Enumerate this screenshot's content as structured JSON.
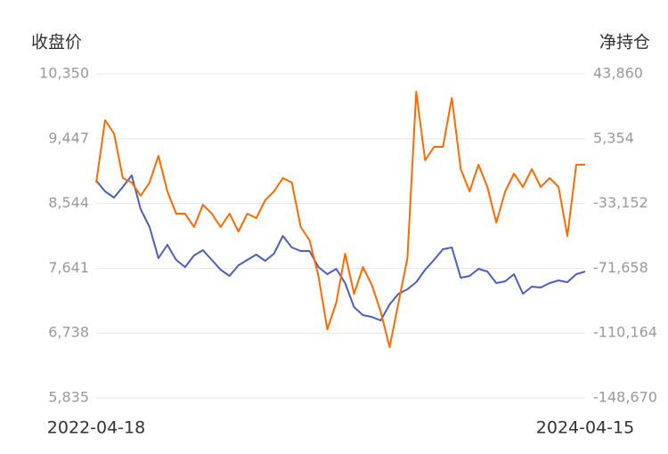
{
  "chart_data": {
    "type": "line",
    "y_label": "收盘价",
    "y2_label": "净持仓",
    "categories": [
      "2022-04-18",
      null,
      null,
      null,
      null,
      null,
      null,
      null,
      null,
      null,
      null,
      null,
      null,
      null,
      null,
      null,
      null,
      null,
      null,
      null,
      null,
      null,
      null,
      null,
      null,
      null,
      null,
      null,
      null,
      null,
      null,
      null,
      null,
      null,
      null,
      null,
      null,
      null,
      null,
      null,
      null,
      null,
      null,
      null,
      null,
      null,
      null,
      null,
      null,
      null,
      null,
      null,
      null,
      null,
      null,
      "2024-04-15"
    ],
    "series": [
      {
        "color": "#4a5fc1",
        "axis": "y",
        "values": [
          8862,
          8713,
          8626,
          8775,
          8936,
          8465,
          8217,
          7782,
          7968,
          7758,
          7658,
          7820,
          7894,
          7758,
          7621,
          7534,
          7683,
          7758,
          7832,
          7745,
          7844,
          8092,
          7931,
          7882,
          7882,
          7658,
          7559,
          7634,
          7435,
          7100,
          6989,
          6964,
          6914,
          7137,
          7286,
          7348,
          7447,
          7621,
          7758,
          7906,
          7931,
          7509,
          7534,
          7634,
          7596,
          7435,
          7460,
          7559,
          7286,
          7385,
          7373,
          7435,
          7472,
          7447,
          7559,
          7596
        ]
      },
      {
        "color": "#ff6a00",
        "axis": "y2",
        "values": [
          -20666,
          16357,
          8424,
          -18021,
          -20666,
          -28599,
          -20666,
          -4799,
          -25955,
          -39177,
          -39177,
          -47111,
          -33888,
          -39177,
          -47111,
          -39177,
          -49755,
          -39177,
          -41822,
          -31244,
          -25955,
          -18021,
          -20666,
          -47111,
          -55044,
          -76200,
          -107934,
          -92067,
          -62978,
          -86778,
          -70911,
          -81489,
          -97356,
          -118512,
          -92067,
          -65622,
          33282,
          -7443,
          490,
          490,
          29580,
          -12732,
          -25955,
          -10088,
          -23310,
          -44466,
          -25955,
          -15377,
          -23310,
          -12732,
          -23310,
          -18021,
          -23310,
          -52400,
          -10088,
          -10088
        ]
      }
    ],
    "ylim": [
      5835,
      10350
    ],
    "yticks": [
      {
        "value": 10350,
        "label": "10,350"
      },
      {
        "value": 9447,
        "label": "9,447"
      },
      {
        "value": 8544,
        "label": "8,544"
      },
      {
        "value": 7641,
        "label": "7,641"
      },
      {
        "value": 6738,
        "label": "6,738"
      },
      {
        "value": 5835,
        "label": "5,835"
      }
    ],
    "y2lim": [
      -148670,
      43860
    ],
    "y2ticks": [
      {
        "value": 43860,
        "label": "43,860"
      },
      {
        "value": 5354,
        "label": "5,354"
      },
      {
        "value": -33152,
        "label": "-33,152"
      },
      {
        "value": -71658,
        "label": "-71,658"
      },
      {
        "value": -110164,
        "label": "-110,164"
      },
      {
        "value": -148670,
        "label": "-148,670"
      }
    ],
    "grid": true
  }
}
